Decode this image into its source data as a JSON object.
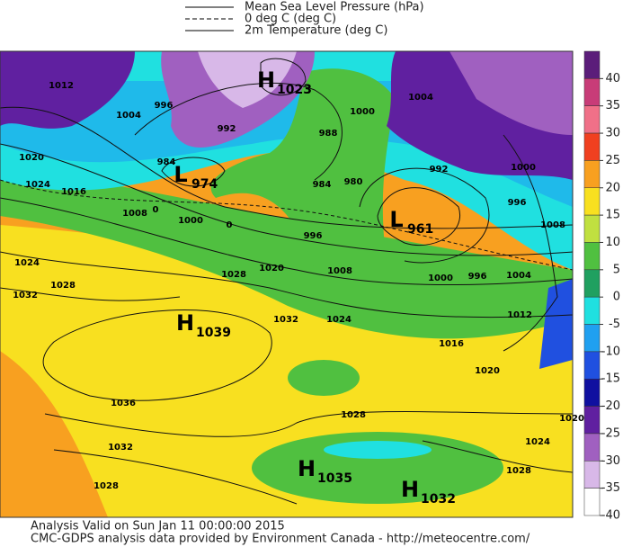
{
  "legend": {
    "items": [
      "Mean Sea Level Pressure (hPa)",
      "0 deg C (deg C)",
      "2m Temperature (deg C)"
    ]
  },
  "pressure_centers": [
    {
      "letter": "H",
      "value": "1023"
    },
    {
      "letter": "L",
      "value": "974"
    },
    {
      "letter": "L",
      "value": "961"
    },
    {
      "letter": "H",
      "value": "1039"
    },
    {
      "letter": "H",
      "value": "1035"
    },
    {
      "letter": "H",
      "value": "1032"
    }
  ],
  "isobar_labels": [
    "1012",
    "996",
    "1004",
    "992",
    "1000",
    "988",
    "1004",
    "984",
    "1020",
    "1024",
    "1016",
    "1008",
    "1000",
    "984",
    "980",
    "992",
    "1000",
    "996",
    "1008",
    "996",
    "1020",
    "1028",
    "1008",
    "1000",
    "996",
    "1004",
    "1024",
    "1028",
    "1032",
    "1032",
    "1024",
    "1012",
    "1016",
    "1020",
    "1036",
    "1028",
    "1020",
    "1024",
    "1032",
    "1028",
    "1028",
    "0",
    "0"
  ],
  "colorbar": {
    "ticks": [
      40,
      35,
      30,
      25,
      20,
      15,
      10,
      5,
      0,
      -5,
      -10,
      -15,
      -20,
      -25,
      -30,
      -35,
      -40
    ],
    "colors": [
      "#5b1d7a",
      "#c83c78",
      "#f07088",
      "#f04020",
      "#f8a020",
      "#f8e020",
      "#c0e040",
      "#50c040",
      "#20a060",
      "#20e0e0",
      "#20a0f0",
      "#2050e0",
      "#1010a0",
      "#6020a0",
      "#a060c0",
      "#d8b8e8",
      "#ffffff"
    ]
  },
  "footer": {
    "lines": [
      "Analysis Valid on Sun Jan 11 00:00:00 2015",
      "CMC-GDPS analysis data provided by Environment Canada - http://meteocentre.com/"
    ]
  }
}
